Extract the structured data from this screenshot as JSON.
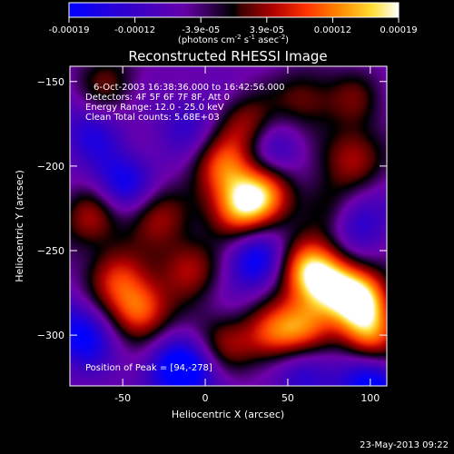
{
  "colorbar": {
    "tick_labels": [
      "-0.00019",
      "-0.00012",
      "-3.9e-05",
      "3.9e-05",
      "0.00012",
      "0.00019"
    ],
    "units_text": "(photons cm",
    "units_sup1": "-2",
    "units_mid": " s",
    "units_sup2": "-1",
    "units_end": " asec",
    "units_sup3": "-2",
    "units_close": ")",
    "vmin": -0.00019,
    "vmax": 0.00019
  },
  "chart_data": {
    "type": "heatmap",
    "title": "Reconstructed RHESSI Image",
    "xlabel": "Heliocentric X (arcsec)",
    "ylabel": "Heliocentric Y (arcsec)",
    "xlim": [
      -82,
      110
    ],
    "ylim": [
      -330,
      -141
    ],
    "x_ticks": [
      -50,
      0,
      50,
      100
    ],
    "y_ticks": [
      -150,
      -200,
      -250,
      -300
    ],
    "x_tick_labels": [
      "-50",
      "0",
      "50",
      "100"
    ],
    "y_tick_labels": [
      "−150",
      "−200",
      "−250",
      "−300"
    ],
    "annotations": [
      "6-Oct-2003 16:38:36.000 to 16:42:56.000",
      "Detectors: 4F 5F 6F 7F 8F, Att 0",
      "Energy Range: 12.0 - 25.0 keV",
      "Clean     Total counts: 5.68E+03"
    ],
    "peak_label": "Position of Peak = [94,-278]",
    "peak": [
      94,
      -278
    ],
    "blobs": [
      {
        "x": 20,
        "y": -225,
        "v": 0.9
      },
      {
        "x": 35,
        "y": -215,
        "v": 0.75
      },
      {
        "x": 10,
        "y": -200,
        "v": 0.7
      },
      {
        "x": 25,
        "y": -175,
        "v": 0.55
      },
      {
        "x": 60,
        "y": -260,
        "v": 0.8
      },
      {
        "x": 75,
        "y": -270,
        "v": 0.85
      },
      {
        "x": 94,
        "y": -278,
        "v": 1.0
      },
      {
        "x": 60,
        "y": -295,
        "v": 0.75
      },
      {
        "x": 40,
        "y": -300,
        "v": 0.65
      },
      {
        "x": 100,
        "y": -300,
        "v": 0.8
      },
      {
        "x": -40,
        "y": -285,
        "v": 0.85
      },
      {
        "x": -55,
        "y": -265,
        "v": 0.6
      },
      {
        "x": -70,
        "y": -230,
        "v": 0.55
      },
      {
        "x": -30,
        "y": -230,
        "v": 0.55
      },
      {
        "x": -10,
        "y": -260,
        "v": 0.6
      },
      {
        "x": 90,
        "y": -195,
        "v": 0.6
      },
      {
        "x": 75,
        "y": -225,
        "v": 0.5
      },
      {
        "x": 10,
        "y": -305,
        "v": 0.5
      },
      {
        "x": -60,
        "y": -150,
        "v": 0.4
      },
      {
        "x": 60,
        "y": -160,
        "v": 0.45
      },
      {
        "x": 90,
        "y": -160,
        "v": 0.35
      },
      {
        "x": -5,
        "y": -320,
        "v": -0.4
      },
      {
        "x": -50,
        "y": -210,
        "v": -0.55
      },
      {
        "x": 90,
        "y": -230,
        "v": -0.5
      },
      {
        "x": 30,
        "y": -255,
        "v": -0.6
      },
      {
        "x": -20,
        "y": -320,
        "v": -0.5
      },
      {
        "x": 60,
        "y": -320,
        "v": -0.45
      },
      {
        "x": -75,
        "y": -300,
        "v": -0.6
      },
      {
        "x": 100,
        "y": -330,
        "v": -0.7
      },
      {
        "x": -10,
        "y": -175,
        "v": -0.3
      },
      {
        "x": 40,
        "y": -190,
        "v": -0.35
      },
      {
        "x": -70,
        "y": -180,
        "v": -0.35
      }
    ]
  },
  "footer": {
    "date": "23-May-2013 09:22"
  }
}
